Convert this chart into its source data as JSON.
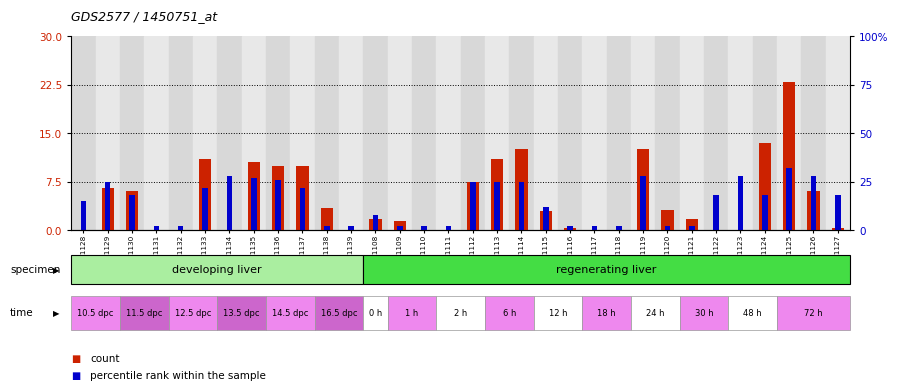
{
  "title": "GDS2577 / 1450751_at",
  "samples": [
    "GSM161128",
    "GSM161129",
    "GSM161130",
    "GSM161131",
    "GSM161132",
    "GSM161133",
    "GSM161134",
    "GSM161135",
    "GSM161136",
    "GSM161137",
    "GSM161138",
    "GSM161139",
    "GSM161108",
    "GSM161109",
    "GSM161110",
    "GSM161111",
    "GSM161112",
    "GSM161113",
    "GSM161114",
    "GSM161115",
    "GSM161116",
    "GSM161117",
    "GSM161118",
    "GSM161119",
    "GSM161120",
    "GSM161121",
    "GSM161122",
    "GSM161123",
    "GSM161124",
    "GSM161125",
    "GSM161126",
    "GSM161127"
  ],
  "red_values": [
    0.0,
    6.5,
    6.0,
    0.0,
    0.0,
    11.0,
    0.0,
    10.5,
    10.0,
    10.0,
    3.5,
    0.0,
    1.8,
    1.5,
    0.0,
    0.0,
    7.5,
    11.0,
    12.5,
    3.0,
    0.3,
    0.0,
    0.0,
    12.5,
    3.2,
    1.8,
    0.0,
    0.0,
    13.5,
    23.0,
    6.0,
    0.3
  ],
  "blue_values": [
    15,
    25,
    18,
    2,
    2,
    22,
    28,
    27,
    26,
    22,
    2,
    2,
    8,
    2,
    2,
    2,
    25,
    25,
    25,
    12,
    2,
    2,
    2,
    28,
    2,
    2,
    18,
    28,
    18,
    32,
    28,
    18
  ],
  "ylim_left": [
    0,
    30
  ],
  "ylim_right": [
    0,
    100
  ],
  "yticks_left": [
    0,
    7.5,
    15,
    22.5,
    30
  ],
  "yticks_right": [
    0,
    25,
    50,
    75,
    100
  ],
  "specimen_groups": [
    {
      "label": "developing liver",
      "start": 0,
      "end": 12,
      "color": "#aaeea0"
    },
    {
      "label": "regenerating liver",
      "start": 12,
      "end": 32,
      "color": "#44dd44"
    }
  ],
  "time_groups": [
    {
      "label": "10.5 dpc",
      "start": 0,
      "end": 2,
      "color": "#ee88ee"
    },
    {
      "label": "11.5 dpc",
      "start": 2,
      "end": 4,
      "color": "#cc66cc"
    },
    {
      "label": "12.5 dpc",
      "start": 4,
      "end": 6,
      "color": "#ee88ee"
    },
    {
      "label": "13.5 dpc",
      "start": 6,
      "end": 8,
      "color": "#cc66cc"
    },
    {
      "label": "14.5 dpc",
      "start": 8,
      "end": 10,
      "color": "#ee88ee"
    },
    {
      "label": "16.5 dpc",
      "start": 10,
      "end": 12,
      "color": "#cc66cc"
    },
    {
      "label": "0 h",
      "start": 12,
      "end": 13,
      "color": "#ffffff"
    },
    {
      "label": "1 h",
      "start": 13,
      "end": 15,
      "color": "#ee88ee"
    },
    {
      "label": "2 h",
      "start": 15,
      "end": 17,
      "color": "#ffffff"
    },
    {
      "label": "6 h",
      "start": 17,
      "end": 19,
      "color": "#ee88ee"
    },
    {
      "label": "12 h",
      "start": 19,
      "end": 21,
      "color": "#ffffff"
    },
    {
      "label": "18 h",
      "start": 21,
      "end": 23,
      "color": "#ee88ee"
    },
    {
      "label": "24 h",
      "start": 23,
      "end": 25,
      "color": "#ffffff"
    },
    {
      "label": "30 h",
      "start": 25,
      "end": 27,
      "color": "#ee88ee"
    },
    {
      "label": "48 h",
      "start": 27,
      "end": 29,
      "color": "#ffffff"
    },
    {
      "label": "72 h",
      "start": 29,
      "end": 32,
      "color": "#ee88ee"
    }
  ],
  "bar_width": 0.5,
  "red_color": "#cc2200",
  "blue_color": "#0000cc",
  "specimen_label": "specimen",
  "time_label": "time",
  "legend_count": "count",
  "legend_percentile": "percentile rank within the sample"
}
